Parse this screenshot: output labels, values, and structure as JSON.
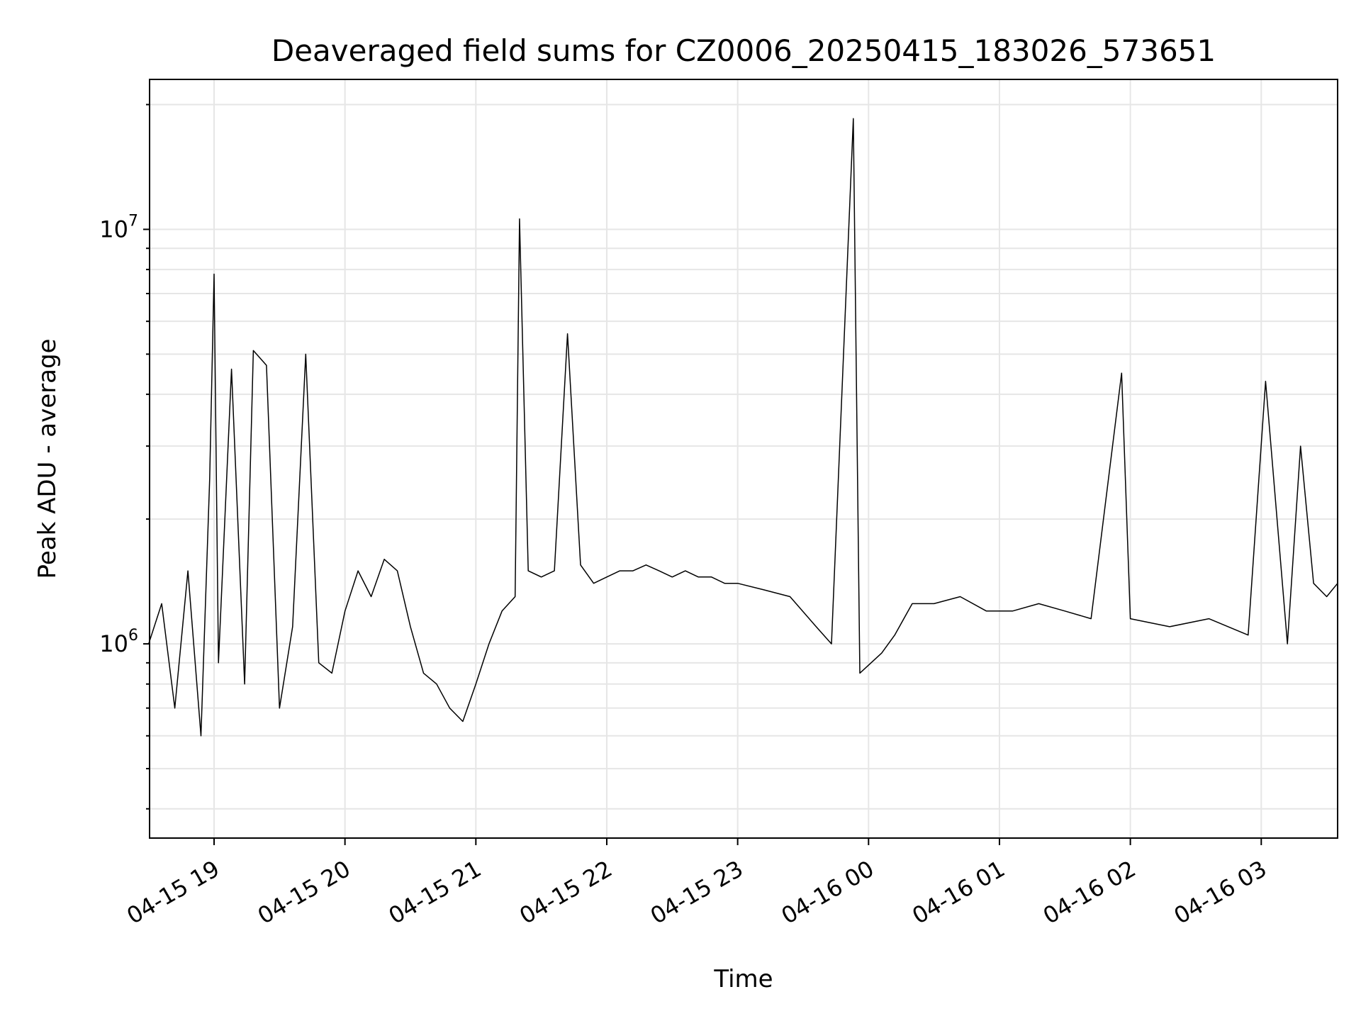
{
  "chart_data": {
    "type": "line",
    "title": "Deaveraged field sums for CZ0006_20250415_183026_573651",
    "xlabel": "Time",
    "ylabel": "Peak ADU - average",
    "yscale": "log",
    "grid": true,
    "x_range": [
      "2025-04-15 18:30:26",
      "2025-04-16 03:35:00"
    ],
    "ylim": [
      340000,
      23000000
    ],
    "x_ticks": [
      {
        "time": "2025-04-15 19:00",
        "label": "04-15 19"
      },
      {
        "time": "2025-04-15 20:00",
        "label": "04-15 20"
      },
      {
        "time": "2025-04-15 21:00",
        "label": "04-15 21"
      },
      {
        "time": "2025-04-15 22:00",
        "label": "04-15 22"
      },
      {
        "time": "2025-04-15 23:00",
        "label": "04-15 23"
      },
      {
        "time": "2025-04-16 00:00",
        "label": "04-16 00"
      },
      {
        "time": "2025-04-16 01:00",
        "label": "04-16 01"
      },
      {
        "time": "2025-04-16 02:00",
        "label": "04-16 02"
      },
      {
        "time": "2025-04-16 03:00",
        "label": "04-16 03"
      }
    ],
    "y_ticks": [
      {
        "value": 1000000,
        "base": "10",
        "exp": "6"
      },
      {
        "value": 10000000,
        "base": "10",
        "exp": "7"
      }
    ],
    "line_color": "#000000",
    "grid_color": "#e6e6e6",
    "series": [
      {
        "points": [
          [
            "2025-04-15 18:30",
            1000000
          ],
          [
            "2025-04-15 18:36",
            1250000
          ],
          [
            "2025-04-15 18:42",
            700000
          ],
          [
            "2025-04-15 18:48",
            1500000
          ],
          [
            "2025-04-15 18:54",
            600000
          ],
          [
            "2025-04-15 18:58",
            2500000
          ],
          [
            "2025-04-15 19:00",
            7800000
          ],
          [
            "2025-04-15 19:02",
            900000
          ],
          [
            "2025-04-15 19:08",
            4600000
          ],
          [
            "2025-04-15 19:14",
            800000
          ],
          [
            "2025-04-15 19:18",
            5100000
          ],
          [
            "2025-04-15 19:24",
            4700000
          ],
          [
            "2025-04-15 19:30",
            700000
          ],
          [
            "2025-04-15 19:36",
            1100000
          ],
          [
            "2025-04-15 19:42",
            5000000
          ],
          [
            "2025-04-15 19:48",
            900000
          ],
          [
            "2025-04-15 19:54",
            850000
          ],
          [
            "2025-04-15 20:00",
            1200000
          ],
          [
            "2025-04-15 20:06",
            1500000
          ],
          [
            "2025-04-15 20:12",
            1300000
          ],
          [
            "2025-04-15 20:18",
            1600000
          ],
          [
            "2025-04-15 20:24",
            1500000
          ],
          [
            "2025-04-15 20:30",
            1100000
          ],
          [
            "2025-04-15 20:36",
            850000
          ],
          [
            "2025-04-15 20:42",
            800000
          ],
          [
            "2025-04-15 20:48",
            700000
          ],
          [
            "2025-04-15 20:54",
            650000
          ],
          [
            "2025-04-15 21:00",
            800000
          ],
          [
            "2025-04-15 21:06",
            1000000
          ],
          [
            "2025-04-15 21:12",
            1200000
          ],
          [
            "2025-04-15 21:18",
            1300000
          ],
          [
            "2025-04-15 21:20",
            10600000
          ],
          [
            "2025-04-15 21:24",
            1500000
          ],
          [
            "2025-04-15 21:30",
            1450000
          ],
          [
            "2025-04-15 21:36",
            1500000
          ],
          [
            "2025-04-15 21:42",
            5600000
          ],
          [
            "2025-04-15 21:48",
            1550000
          ],
          [
            "2025-04-15 21:54",
            1400000
          ],
          [
            "2025-04-15 22:00",
            1450000
          ],
          [
            "2025-04-15 22:06",
            1500000
          ],
          [
            "2025-04-15 22:12",
            1500000
          ],
          [
            "2025-04-15 22:18",
            1550000
          ],
          [
            "2025-04-15 22:24",
            1500000
          ],
          [
            "2025-04-15 22:30",
            1450000
          ],
          [
            "2025-04-15 22:36",
            1500000
          ],
          [
            "2025-04-15 22:42",
            1450000
          ],
          [
            "2025-04-15 22:48",
            1450000
          ],
          [
            "2025-04-15 22:54",
            1400000
          ],
          [
            "2025-04-15 23:00",
            1400000
          ],
          [
            "2025-04-15 23:12",
            1350000
          ],
          [
            "2025-04-15 23:24",
            1300000
          ],
          [
            "2025-04-15 23:36",
            1100000
          ],
          [
            "2025-04-15 23:43",
            1000000
          ],
          [
            "2025-04-15 23:53",
            18500000
          ],
          [
            "2025-04-15 23:56",
            850000
          ],
          [
            "2025-04-16 00:06",
            950000
          ],
          [
            "2025-04-16 00:12",
            1050000
          ],
          [
            "2025-04-16 00:20",
            1250000
          ],
          [
            "2025-04-16 00:30",
            1250000
          ],
          [
            "2025-04-16 00:42",
            1300000
          ],
          [
            "2025-04-16 00:54",
            1200000
          ],
          [
            "2025-04-16 01:06",
            1200000
          ],
          [
            "2025-04-16 01:18",
            1250000
          ],
          [
            "2025-04-16 01:30",
            1200000
          ],
          [
            "2025-04-16 01:42",
            1150000
          ],
          [
            "2025-04-16 01:56",
            4500000
          ],
          [
            "2025-04-16 02:00",
            1150000
          ],
          [
            "2025-04-16 02:18",
            1100000
          ],
          [
            "2025-04-16 02:36",
            1150000
          ],
          [
            "2025-04-16 02:54",
            1050000
          ],
          [
            "2025-04-16 03:02",
            4300000
          ],
          [
            "2025-04-16 03:12",
            1000000
          ],
          [
            "2025-04-16 03:18",
            3000000
          ],
          [
            "2025-04-16 03:24",
            1400000
          ],
          [
            "2025-04-16 03:30",
            1300000
          ],
          [
            "2025-04-16 03:35",
            1400000
          ]
        ]
      }
    ]
  }
}
